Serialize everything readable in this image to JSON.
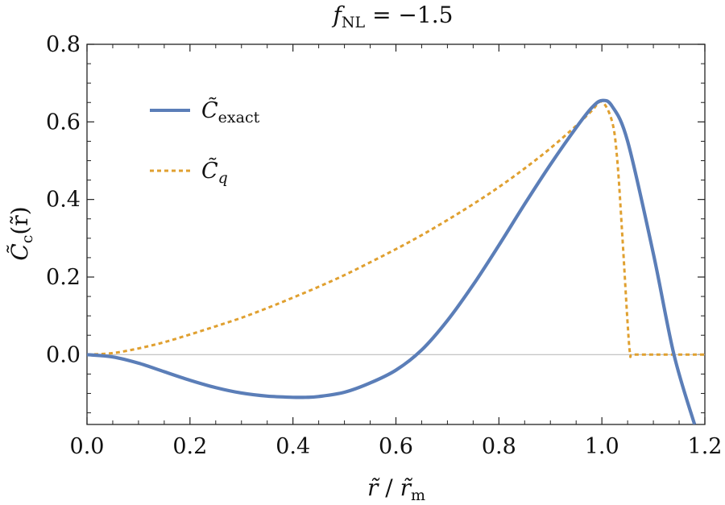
{
  "chart_data": {
    "type": "line",
    "title": "f_NL = −1.5",
    "title_parts": {
      "base": "f",
      "sub": "NL",
      "rest": " = −1.5"
    },
    "xlabel": "r̃ / r̃_m",
    "xlabel_parts": {
      "a": "r̃",
      "sep": " / ",
      "b": "r̃",
      "sub": "m"
    },
    "ylabel": "C̃_c(r̃)",
    "ylabel_parts": {
      "base": "C̃",
      "sub": "c",
      "rest": "(r̃)"
    },
    "xlim": [
      0.0,
      1.2
    ],
    "ylim": [
      -0.18,
      0.8
    ],
    "x_ticks": [
      "0.0",
      "0.2",
      "0.4",
      "0.6",
      "0.8",
      "1.0",
      "1.2"
    ],
    "y_ticks": [
      "0.0",
      "0.2",
      "0.4",
      "0.6",
      "0.8"
    ],
    "grid": false,
    "zero_line": true,
    "legend_position": "top-left",
    "series": [
      {
        "name": "C̃_exact",
        "name_parts": {
          "base": "C̃",
          "sub": "exact"
        },
        "color": "#5b7eb8",
        "style": "solid",
        "x": [
          0.0,
          0.05,
          0.1,
          0.15,
          0.2,
          0.25,
          0.3,
          0.35,
          0.4,
          0.425,
          0.45,
          0.5,
          0.55,
          0.6,
          0.65,
          0.7,
          0.75,
          0.8,
          0.85,
          0.9,
          0.95,
          0.98,
          1.0,
          1.02,
          1.05,
          1.1,
          1.14,
          1.18
        ],
        "y": [
          0.0,
          -0.006,
          -0.022,
          -0.044,
          -0.066,
          -0.085,
          -0.099,
          -0.107,
          -0.11,
          -0.11,
          -0.108,
          -0.097,
          -0.073,
          -0.04,
          0.012,
          0.088,
          0.18,
          0.282,
          0.388,
          0.49,
          0.585,
          0.636,
          0.655,
          0.64,
          0.55,
          0.26,
          0.0,
          -0.18
        ]
      },
      {
        "name": "C̃_q",
        "name_parts": {
          "base": "C̃",
          "sub": "q"
        },
        "color": "#e0a030",
        "style": "dashed",
        "x": [
          0.0,
          0.05,
          0.1,
          0.15,
          0.2,
          0.25,
          0.3,
          0.35,
          0.4,
          0.45,
          0.5,
          0.55,
          0.6,
          0.65,
          0.7,
          0.75,
          0.8,
          0.85,
          0.9,
          0.95,
          0.98,
          1.0,
          1.02,
          1.03,
          1.04,
          1.05,
          1.055,
          1.06,
          1.1,
          1.2
        ],
        "y": [
          0.0,
          0.004,
          0.016,
          0.032,
          0.052,
          0.073,
          0.095,
          0.12,
          0.147,
          0.175,
          0.205,
          0.238,
          0.272,
          0.308,
          0.347,
          0.388,
          0.432,
          0.48,
          0.532,
          0.59,
          0.628,
          0.652,
          0.6,
          0.5,
          0.3,
          0.08,
          0.0,
          0.0,
          0.0,
          0.0
        ]
      }
    ]
  }
}
